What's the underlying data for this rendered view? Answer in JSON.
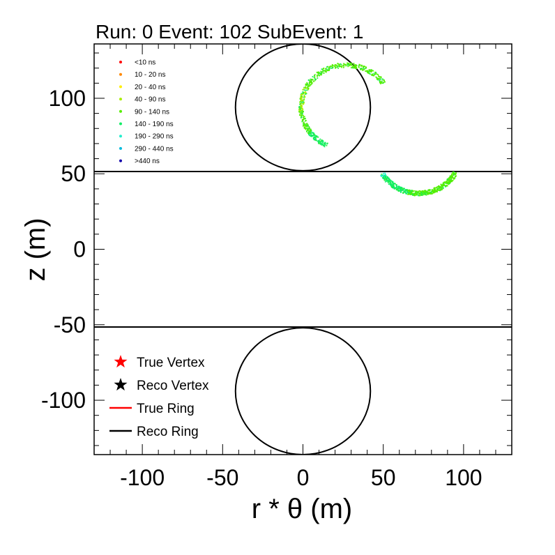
{
  "chart_data": {
    "type": "scatter",
    "title": "Run: 0  Event: 102  SubEvent: 1",
    "xlabel": "r * θ (m)",
    "ylabel": "z (m)",
    "xlim": [
      -130,
      130
    ],
    "ylim": [
      -136,
      136
    ],
    "x_ticks": [
      -100,
      -50,
      0,
      50,
      100
    ],
    "x_tick_labels": [
      "-100",
      "-50",
      "0",
      "50",
      "100"
    ],
    "y_ticks": [
      -100,
      -50,
      0,
      50,
      100
    ],
    "y_tick_labels": [
      "-100",
      "-50",
      "0",
      "50",
      "100"
    ],
    "boundary_lines_z": [
      51.5,
      -51.5
    ],
    "reco_circles": [
      {
        "cx": 0,
        "cy": 94,
        "r": 42
      },
      {
        "cx": 0,
        "cy": -94,
        "r": 42
      }
    ],
    "time_legend": [
      {
        "label": "<10 ns",
        "color": "#ff0000"
      },
      {
        "label": "10 - 20 ns",
        "color": "#ff8800"
      },
      {
        "label": "20 - 40 ns",
        "color": "#ffee00"
      },
      {
        "label": "40 - 90 ns",
        "color": "#aaee00"
      },
      {
        "label": "90 - 140 ns",
        "color": "#55ee00"
      },
      {
        "label": "140 - 190 ns",
        "color": "#11ee66"
      },
      {
        "label": "190 - 290 ns",
        "color": "#22eecc"
      },
      {
        "label": "290 - 440 ns",
        "color": "#00bbdd"
      },
      {
        "label": ">440 ns",
        "color": "#1100aa"
      }
    ],
    "marker_legend": [
      {
        "label": "True Vertex",
        "type": "star",
        "color": "#ff0000"
      },
      {
        "label": "Reco Vertex",
        "type": "star",
        "color": "#000000"
      },
      {
        "label": "True Ring",
        "type": "line",
        "color": "#ff0000"
      },
      {
        "label": "Reco Ring",
        "type": "line",
        "color": "#000000"
      }
    ],
    "hit_arcs": [
      {
        "name": "top-cap-ring",
        "center": [
          27,
          94
        ],
        "radius": 28,
        "angle_range_deg": [
          35,
          245
        ],
        "points": [
          [
            24,
            125,
            "#55ee00"
          ],
          [
            18,
            122,
            "#55ee00"
          ],
          [
            12,
            117,
            "#55ee00"
          ],
          [
            6,
            110,
            "#55ee00"
          ],
          [
            2,
            102,
            "#aaee00"
          ],
          [
            0,
            96,
            "#aaee00"
          ],
          [
            1,
            88,
            "#55ee00"
          ],
          [
            4,
            82,
            "#55ee00"
          ],
          [
            9,
            77,
            "#11ee66"
          ],
          [
            15,
            74,
            "#11ee66"
          ],
          [
            22,
            71,
            "#22eecc"
          ],
          [
            30,
            68,
            "#22eecc"
          ]
        ]
      },
      {
        "name": "barrel-ring",
        "center": [
          72,
          63
        ],
        "radius": 26,
        "angle_range_deg": [
          -150,
          -28
        ],
        "points": [
          [
            38,
            51,
            "#22eecc"
          ],
          [
            45,
            46,
            "#22eecc"
          ],
          [
            53,
            42,
            "#11ee66"
          ],
          [
            61,
            39,
            "#11ee66"
          ],
          [
            70,
            38,
            "#55ee00"
          ],
          [
            79,
            38,
            "#55ee00"
          ],
          [
            88,
            41,
            "#55ee00"
          ],
          [
            96,
            45,
            "#55ee00"
          ],
          [
            103,
            51,
            "#55ee00"
          ]
        ]
      }
    ]
  },
  "axes": {
    "frame_color": "#000000",
    "hit_palette": [
      "#55ee00",
      "#33ee33",
      "#11ee66",
      "#22eecc",
      "#aaee00"
    ]
  }
}
